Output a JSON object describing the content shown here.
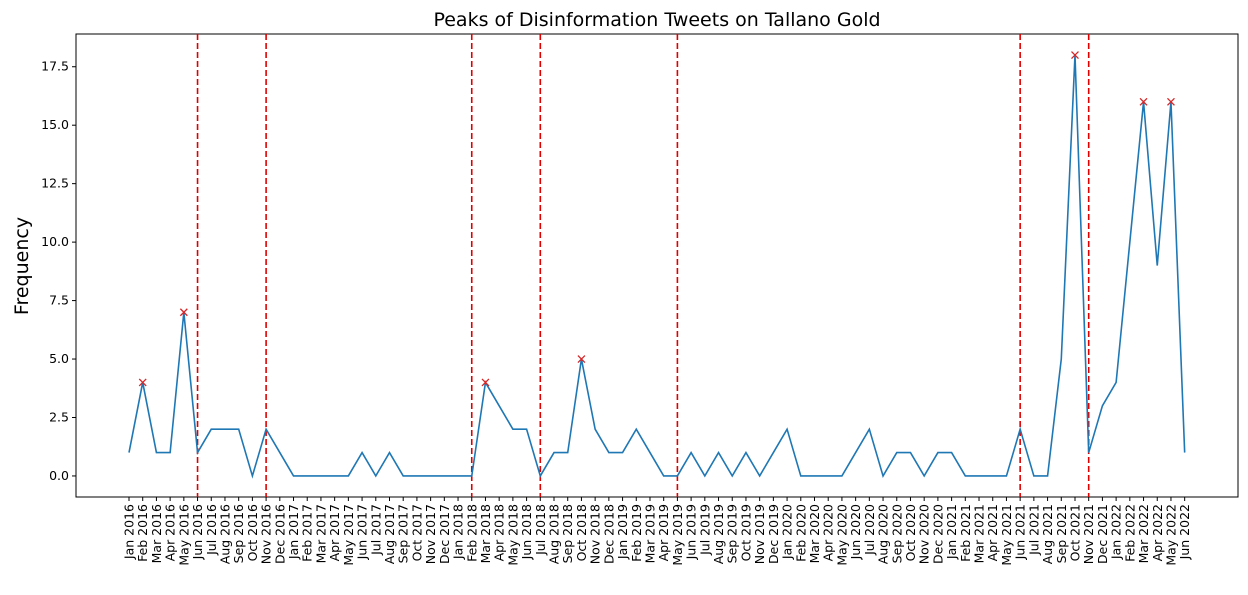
{
  "chart_data": {
    "type": "line",
    "title": "Peaks of Disinformation Tweets on Tallano Gold",
    "xlabel": "",
    "ylabel": "Frequency",
    "ylim": [
      -0.9,
      18.9
    ],
    "yticks": [
      "0.0",
      "2.5",
      "5.0",
      "7.5",
      "10.0",
      "12.5",
      "15.0",
      "17.5"
    ],
    "categories": [
      "Jan 2016",
      "Feb 2016",
      "Mar 2016",
      "Apr 2016",
      "May 2016",
      "Jun 2016",
      "Jul 2016",
      "Aug 2016",
      "Sep 2016",
      "Oct 2016",
      "Nov 2016",
      "Dec 2016",
      "Jan 2017",
      "Feb 2017",
      "Mar 2017",
      "Apr 2017",
      "May 2017",
      "Jun 2017",
      "Jul 2017",
      "Aug 2017",
      "Sep 2017",
      "Oct 2017",
      "Nov 2017",
      "Dec 2017",
      "Jan 2018",
      "Feb 2018",
      "Mar 2018",
      "Apr 2018",
      "May 2018",
      "Jun 2018",
      "Jul 2018",
      "Aug 2018",
      "Sep 2018",
      "Oct 2018",
      "Nov 2018",
      "Dec 2018",
      "Jan 2019",
      "Feb 2019",
      "Mar 2019",
      "Apr 2019",
      "May 2019",
      "Jun 2019",
      "Jul 2019",
      "Aug 2019",
      "Sep 2019",
      "Oct 2019",
      "Nov 2019",
      "Dec 2019",
      "Jan 2020",
      "Feb 2020",
      "Mar 2020",
      "Apr 2020",
      "May 2020",
      "Jun 2020",
      "Jul 2020",
      "Aug 2020",
      "Sep 2020",
      "Oct 2020",
      "Nov 2020",
      "Dec 2020",
      "Jan 2021",
      "Feb 2021",
      "Mar 2021",
      "Apr 2021",
      "May 2021",
      "Jun 2021",
      "Jul 2021",
      "Aug 2021",
      "Sep 2021",
      "Oct 2021",
      "Nov 2021",
      "Dec 2021",
      "Jan 2022",
      "Feb 2022",
      "Mar 2022",
      "Apr 2022",
      "May 2022",
      "Jun 2022"
    ],
    "series": [
      {
        "values": [
          1,
          4,
          1,
          1,
          7,
          1,
          2,
          2,
          2,
          0,
          2,
          1,
          0,
          0,
          0,
          0,
          0,
          1,
          0,
          1,
          0,
          0,
          0,
          0,
          0,
          0,
          4,
          3,
          2,
          2,
          0,
          1,
          1,
          5,
          2,
          1,
          1,
          2,
          1,
          0,
          0,
          1,
          0,
          1,
          0,
          1,
          0,
          1,
          2,
          0,
          0,
          0,
          0,
          1,
          2,
          0,
          1,
          1,
          0,
          1,
          1,
          0,
          0,
          0,
          0,
          2,
          0,
          0,
          5,
          18,
          1,
          3,
          4,
          10,
          16,
          9,
          16,
          1
        ],
        "color": "#1f77b4"
      }
    ],
    "peaks": [
      "Feb 2016",
      "May 2016",
      "Mar 2018",
      "Oct 2018",
      "Oct 2021",
      "Mar 2022",
      "May 2022"
    ],
    "peak_marker_color": "#d62728",
    "vertical_lines": [
      "Jun 2016",
      "Nov 2016",
      "Feb 2018",
      "Jul 2018",
      "May 2019",
      "Jun 2021",
      "Nov 2021"
    ],
    "vline_color": "#e00000",
    "grid": false,
    "legend": "none"
  }
}
